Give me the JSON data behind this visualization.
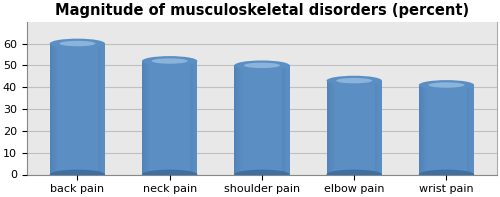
{
  "title": "Magnitude of musculoskeletal disorders (percent)",
  "categories": [
    "back pain",
    "neck pain",
    "shoulder pain",
    "elbow pain",
    "wrist pain"
  ],
  "values": [
    60,
    52,
    50,
    43,
    41
  ],
  "bar_color_body": "#5b8fc4",
  "bar_color_left": "#3d6fa3",
  "bar_color_top": "#7aaad6",
  "bar_color_highlight": "#a0c4e8",
  "ylim": [
    0,
    70
  ],
  "yticks": [
    0,
    10,
    20,
    30,
    40,
    50,
    60
  ],
  "background_color": "#ffffff",
  "plot_bg_color": "#e8e8e8",
  "title_fontsize": 10.5,
  "tick_fontsize": 8,
  "grid_color": "#c0c0c0"
}
